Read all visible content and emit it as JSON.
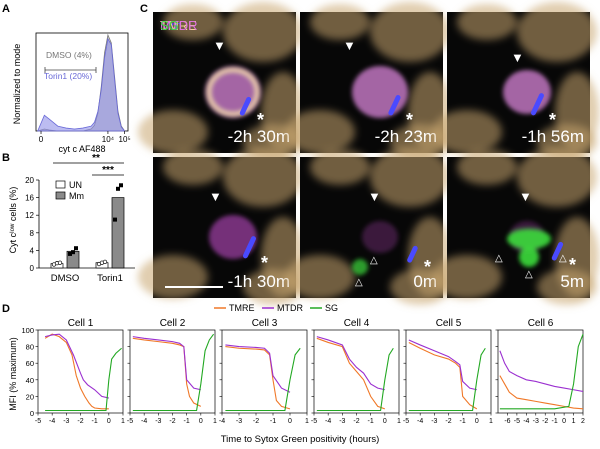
{
  "panel_labels": {
    "a": "A",
    "b": "B",
    "c": "C",
    "d": "D"
  },
  "panel_a": {
    "y_label": "Normalized to mode",
    "x_label": "cyt c AF488",
    "x_ticks": [
      "0",
      "10⁴",
      "10⁵"
    ],
    "legend": [
      {
        "label": "DMSO (4%)",
        "color": "#888888"
      },
      {
        "label": "Torin1 (20%)",
        "color": "#6a6ad8"
      }
    ]
  },
  "panel_b": {
    "y_label": "Cyt cˡᵒʷ cells (%)",
    "legend": [
      {
        "label": "UN"
      },
      {
        "label": "Mm"
      }
    ],
    "sig": [
      "**",
      "***"
    ]
  },
  "panel_c": {
    "legend": [
      {
        "label": "Mm",
        "color": "#4a4aff"
      },
      {
        "label": "TMRE",
        "color": "#f3d29a"
      },
      {
        "label": "MTDR",
        "color": "#e070e0"
      },
      {
        "label": "SG",
        "color": "#3cdc3c"
      }
    ],
    "tiles": [
      {
        "time": "-2h 30m"
      },
      {
        "time": "-2h 23m"
      },
      {
        "time": "-1h 56m"
      },
      {
        "time": "-1h 30m"
      },
      {
        "time": "0m"
      },
      {
        "time": "5m"
      }
    ],
    "arrow_glyph": "▼",
    "open_arrow_glyph": "△",
    "asterisk": "*"
  },
  "panel_d": {
    "y_label": "MFI (% maximum)",
    "x_label": "Time to Sytox Green positivity (hours)",
    "legend": [
      {
        "label": "TMRE",
        "color": "#f07828"
      },
      {
        "label": "MTDR",
        "color": "#9b30d0"
      },
      {
        "label": "SG",
        "color": "#22a822"
      }
    ],
    "cells": [
      "Cell 1",
      "Cell 2",
      "Cell 3",
      "Cell 4",
      "Cell 5",
      "Cell 6"
    ]
  },
  "chart_data": [
    {
      "type": "area",
      "panel": "A",
      "title": "",
      "xlabel": "cyt c AF488",
      "ylabel": "Normalized to mode",
      "x_scale": "log",
      "x_ticks": [
        "0",
        "10⁴",
        "10⁵"
      ],
      "x": [
        -0.2,
        0.0,
        0.2,
        0.5,
        1.0,
        1.5,
        2.0,
        2.5,
        3.0,
        3.2,
        3.4,
        3.6,
        3.8,
        4.0,
        4.2,
        4.4,
        4.6,
        4.8,
        5.0
      ],
      "series": [
        {
          "name": "DMSO (4%)",
          "color": "#888888",
          "values": [
            0,
            1,
            2,
            1,
            0,
            0,
            0,
            0,
            2,
            6,
            18,
            45,
            80,
            98,
            90,
            55,
            20,
            5,
            0
          ]
        },
        {
          "name": "Torin1 (20%)",
          "color": "#6a6ad8",
          "values": [
            0,
            8,
            16,
            12,
            5,
            3,
            2,
            3,
            5,
            9,
            20,
            42,
            75,
            94,
            88,
            52,
            18,
            4,
            0
          ]
        }
      ]
    },
    {
      "type": "bar",
      "panel": "B",
      "title": "",
      "xlabel": "",
      "ylabel": "Cyt c low cells (%)",
      "ylim": [
        0,
        20
      ],
      "y_ticks": [
        "0",
        "4",
        "8",
        "12",
        "16",
        "20"
      ],
      "categories": [
        "DMSO",
        "Torin1"
      ],
      "series": [
        {
          "name": "UN",
          "color": "#ffffff",
          "values": [
            1.0,
            1.2
          ],
          "points": [
            [
              0.8,
              1.1,
              1.2
            ],
            [
              0.9,
              1.2,
              1.4
            ]
          ]
        },
        {
          "name": "Mm",
          "color": "#8a8a8a",
          "values": [
            3.8,
            16.0
          ],
          "points": [
            [
              3.2,
              3.6,
              4.5
            ],
            [
              11.0,
              18.0,
              18.8
            ]
          ]
        }
      ],
      "significance": [
        {
          "label": "**",
          "between": [
            "DMSO UN",
            "Torin1 Mm"
          ]
        },
        {
          "label": "***",
          "between": [
            "Torin1 UN",
            "Torin1 Mm"
          ]
        }
      ]
    },
    {
      "type": "line",
      "panel": "D",
      "xlabel": "Time to Sytox Green positivity (hours)",
      "ylabel": "MFI (% maximum)",
      "ylim": [
        0,
        100
      ],
      "y_ticks": [
        "0",
        "20",
        "40",
        "60",
        "80",
        "100"
      ],
      "panels": [
        {
          "title": "Cell 1",
          "xlim": [
            -5,
            1
          ],
          "x_ticks": [
            "-5",
            "-4",
            "-3",
            "-2",
            "-1",
            "0",
            "1"
          ],
          "series": [
            {
              "name": "TMRE",
              "x": [
                -4.5,
                -4,
                -3.5,
                -3,
                -2.6,
                -2.3,
                -2,
                -1.7,
                -1.4,
                -1.2,
                -1,
                -0.5,
                0
              ],
              "values": [
                90,
                95,
                92,
                85,
                70,
                45,
                30,
                20,
                12,
                8,
                6,
                5,
                5
              ]
            },
            {
              "name": "MTDR",
              "x": [
                -4.5,
                -4,
                -3.5,
                -3,
                -2.5,
                -2,
                -1.8,
                -1.5,
                -1,
                -0.5,
                0
              ],
              "values": [
                92,
                94,
                95,
                88,
                70,
                48,
                40,
                34,
                28,
                20,
                18
              ]
            },
            {
              "name": "SG",
              "x": [
                -4.5,
                -3,
                -2,
                -1,
                -0.2,
                0,
                0.2,
                0.5,
                0.9
              ],
              "values": [
                3,
                3,
                3,
                3,
                3,
                40,
                65,
                72,
                78
              ]
            }
          ]
        },
        {
          "title": "Cell 2",
          "xlim": [
            -5,
            1
          ],
          "x_ticks": [
            "-5",
            "-4",
            "-3",
            "-2",
            "-1",
            "0",
            "1"
          ],
          "series": [
            {
              "name": "TMRE",
              "x": [
                -4.8,
                -4,
                -3,
                -2,
                -1.5,
                -1.2,
                -1,
                -0.8,
                -0.5,
                0
              ],
              "values": [
                90,
                88,
                86,
                84,
                82,
                80,
                35,
                20,
                12,
                8
              ]
            },
            {
              "name": "MTDR",
              "x": [
                -4.8,
                -4,
                -3,
                -2,
                -1.5,
                -1.2,
                -1,
                -0.5,
                0
              ],
              "values": [
                92,
                90,
                88,
                86,
                84,
                80,
                40,
                30,
                28
              ]
            },
            {
              "name": "SG",
              "x": [
                -4.8,
                -2,
                -0.3,
                0,
                0.3,
                0.6,
                0.9
              ],
              "values": [
                3,
                3,
                3,
                35,
                75,
                88,
                95
              ]
            }
          ]
        },
        {
          "title": "Cell 3",
          "xlim": [
            -4,
            1
          ],
          "x_ticks": [
            "-4",
            "-3",
            "-2",
            "-1",
            "0",
            "1"
          ],
          "series": [
            {
              "name": "TMRE",
              "x": [
                -3.8,
                -3,
                -2,
                -1.5,
                -1.2,
                -1,
                -0.8,
                -0.5,
                0
              ],
              "values": [
                80,
                78,
                77,
                76,
                70,
                40,
                15,
                8,
                5
              ]
            },
            {
              "name": "MTDR",
              "x": [
                -3.8,
                -3,
                -2,
                -1.5,
                -1.2,
                -1,
                -0.5,
                0
              ],
              "values": [
                82,
                80,
                79,
                78,
                72,
                45,
                30,
                25
              ]
            },
            {
              "name": "SG",
              "x": [
                -3.8,
                -2,
                -0.3,
                0,
                0.3,
                0.6
              ],
              "values": [
                3,
                3,
                3,
                40,
                70,
                78
              ]
            }
          ]
        },
        {
          "title": "Cell 4",
          "xlim": [
            -5,
            1
          ],
          "x_ticks": [
            "-5",
            "-4",
            "-3",
            "-2",
            "-1",
            "0",
            "1"
          ],
          "series": [
            {
              "name": "TMRE",
              "x": [
                -4.8,
                -4,
                -3,
                -2.5,
                -2,
                -1.5,
                -1,
                -0.5,
                0
              ],
              "values": [
                90,
                85,
                80,
                60,
                50,
                40,
                20,
                8,
                5
              ]
            },
            {
              "name": "MTDR",
              "x": [
                -4.8,
                -4,
                -3,
                -2.5,
                -2,
                -1.5,
                -1,
                -0.5,
                0
              ],
              "values": [
                92,
                88,
                82,
                65,
                55,
                48,
                35,
                30,
                28
              ]
            },
            {
              "name": "SG",
              "x": [
                -4.8,
                -2,
                -0.3,
                0,
                0.3,
                0.6
              ],
              "values": [
                3,
                3,
                3,
                40,
                70,
                78
              ]
            }
          ]
        },
        {
          "title": "Cell 5",
          "xlim": [
            -5,
            1
          ],
          "x_ticks": [
            "-5",
            "-4",
            "-3",
            "-2",
            "-1",
            "0",
            "1"
          ],
          "series": [
            {
              "name": "TMRE",
              "x": [
                -4.8,
                -4,
                -3,
                -2,
                -1.5,
                -1.2,
                -1,
                -0.5,
                0
              ],
              "values": [
                85,
                78,
                70,
                65,
                60,
                55,
                20,
                10,
                5
              ]
            },
            {
              "name": "MTDR",
              "x": [
                -4.8,
                -4,
                -3,
                -2,
                -1.5,
                -1.2,
                -1,
                -0.5,
                0
              ],
              "values": [
                88,
                82,
                75,
                68,
                62,
                58,
                38,
                30,
                28
              ]
            },
            {
              "name": "SG",
              "x": [
                -4.8,
                -2,
                -0.3,
                0,
                0.3,
                0.6
              ],
              "values": [
                3,
                3,
                3,
                40,
                70,
                78
              ]
            }
          ]
        },
        {
          "title": "Cell 6",
          "xlim": [
            -7,
            2
          ],
          "x_ticks": [
            "-6",
            "-5",
            "-4",
            "-3",
            "-2",
            "-1",
            "0",
            "1",
            "2"
          ],
          "series": [
            {
              "name": "TMRE",
              "x": [
                -6.8,
                -6.3,
                -5.8,
                -5,
                -4,
                -3,
                -2,
                -1,
                0,
                1,
                2
              ],
              "values": [
                45,
                35,
                25,
                18,
                16,
                14,
                12,
                10,
                8,
                6,
                5
              ]
            },
            {
              "name": "MTDR",
              "x": [
                -6.8,
                -6.3,
                -5.8,
                -5,
                -4,
                -3,
                -2,
                -1,
                0,
                1,
                2
              ],
              "values": [
                75,
                60,
                50,
                45,
                40,
                38,
                35,
                32,
                30,
                28,
                26
              ]
            },
            {
              "name": "SG",
              "x": [
                -6.8,
                -4,
                -1,
                0.5,
                1,
                1.5,
                2
              ],
              "values": [
                5,
                5,
                5,
                8,
                35,
                80,
                95
              ]
            }
          ]
        }
      ]
    }
  ]
}
